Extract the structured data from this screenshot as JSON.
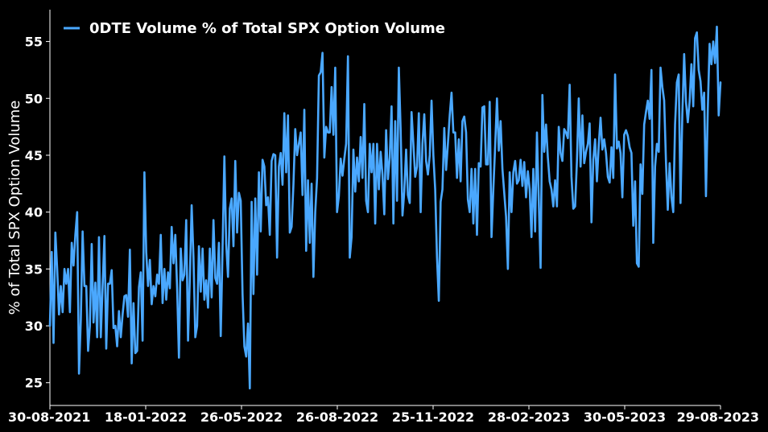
{
  "chart_data": {
    "type": "line",
    "ylabel": "% of Total SPX Option Volume",
    "xlabel": "",
    "ylim": [
      23,
      57.8
    ],
    "yticks": [
      25,
      30,
      35,
      40,
      45,
      50,
      55
    ],
    "xticks": [
      "30-08-2021",
      "18-01-2022",
      "26-05-2022",
      "26-08-2022",
      "25-11-2022",
      "28-02-2023",
      "30-05-2023",
      "29-08-2023"
    ],
    "grid": false,
    "legend_position": "top-left",
    "colors": {
      "line": "#4aa8ff",
      "background": "#000000",
      "text": "#ffffff",
      "axis": "#ffffff"
    },
    "series": [
      {
        "name": "0DTE Volume % of Total SPX Option Volume",
        "values": [
          30.0,
          36.5,
          28.5,
          38.2,
          35.0,
          31.0,
          33.5,
          31.2,
          35.0,
          33.7,
          35.0,
          31.2,
          37.3,
          35.3,
          38.0,
          40.0,
          25.8,
          30.5,
          38.3,
          33.5,
          33.5,
          27.8,
          30.0,
          37.2,
          30.3,
          33.8,
          29.0,
          37.8,
          29.0,
          33.5,
          37.9,
          28.0,
          33.7,
          33.7,
          34.9,
          29.8,
          30.0,
          28.2,
          31.3,
          29.0,
          31.0,
          32.6,
          32.7,
          30.8,
          36.7,
          26.7,
          32.0,
          27.6,
          27.8,
          33.4,
          34.7,
          28.7,
          43.5,
          36.5,
          33.5,
          35.8,
          31.9,
          33.5,
          32.6,
          34.5,
          33.7,
          38.0,
          32.0,
          35.0,
          32.3,
          34.7,
          33.3,
          38.7,
          35.5,
          38.0,
          33.3,
          27.2,
          36.8,
          34.0,
          34.5,
          39.3,
          28.7,
          34.2,
          40.6,
          36.0,
          29.0,
          30.0,
          37.0,
          33.0,
          36.8,
          32.3,
          34.0,
          31.6,
          36.8,
          32.5,
          39.3,
          34.2,
          33.7,
          37.3,
          29.1,
          36.8,
          44.9,
          37.2,
          34.3,
          40.3,
          41.2,
          37.0,
          44.5,
          38.2,
          41.7,
          41.0,
          32.8,
          28.2,
          27.3,
          30.2,
          24.5,
          40.9,
          32.8,
          41.2,
          34.5,
          43.5,
          38.3,
          44.6,
          44.0,
          40.6,
          41.3,
          38.0,
          44.5,
          45.1,
          45.0,
          36.0,
          44.0,
          45.2,
          42.4,
          48.7,
          43.5,
          48.5,
          38.2,
          38.7,
          42.4,
          47.3,
          45.0,
          46.0,
          47.0,
          41.5,
          49.0,
          36.6,
          42.8,
          37.3,
          42.5,
          34.3,
          40.0,
          43.0,
          52.0,
          52.3,
          54.0,
          44.8,
          47.5,
          47.0,
          47.0,
          51.0,
          46.8,
          52.7,
          40.0,
          41.4,
          44.7,
          43.2,
          44.7,
          46.0,
          53.7,
          36.0,
          37.8,
          45.5,
          41.8,
          44.8,
          42.7,
          46.6,
          43.0,
          49.5,
          41.0,
          40.0,
          46.0,
          43.5,
          46.0,
          39.0,
          46.0,
          42.0,
          45.3,
          43.3,
          39.8,
          47.2,
          42.9,
          44.8,
          49.3,
          39.0,
          48.0,
          41.0,
          52.7,
          47.2,
          39.7,
          41.8,
          45.5,
          41.5,
          40.8,
          48.8,
          46.0,
          43.1,
          44.0,
          48.7,
          40.0,
          46.0,
          48.6,
          44.5,
          43.3,
          45.0,
          49.8,
          45.0,
          42.0,
          36.0,
          32.2,
          40.9,
          42.0,
          47.4,
          43.7,
          46.0,
          48.5,
          50.5,
          47.0,
          47.0,
          43.0,
          46.4,
          42.7,
          48.0,
          48.4,
          47.0,
          41.1,
          40.0,
          43.8,
          39.0,
          43.8,
          38.0,
          44.3,
          44.0,
          49.2,
          49.3,
          44.2,
          44.2,
          49.7,
          37.8,
          42.0,
          45.8,
          50.0,
          45.4,
          48.0,
          43.8,
          41.7,
          39.6,
          35.0,
          43.5,
          40.0,
          43.5,
          44.5,
          42.5,
          42.8,
          44.6,
          42.3,
          44.4,
          41.3,
          43.6,
          42.0,
          37.8,
          43.8,
          38.3,
          47.0,
          41.0,
          35.1,
          50.3,
          45.3,
          47.7,
          44.8,
          42.7,
          42.0,
          40.5,
          42.8,
          40.5,
          47.5,
          45.2,
          44.5,
          47.3,
          47.0,
          46.5,
          51.2,
          43.1,
          40.3,
          40.5,
          44.5,
          50.0,
          44.0,
          48.5,
          44.3,
          45.3,
          46.0,
          47.8,
          39.1,
          44.6,
          46.4,
          42.7,
          45.9,
          48.3,
          45.5,
          46.4,
          45.2,
          43.1,
          42.6,
          45.7,
          43.0,
          52.1,
          45.6,
          46.2,
          45.2,
          41.3,
          46.8,
          47.2,
          46.7,
          45.7,
          45.2,
          38.8,
          42.7,
          35.5,
          35.2,
          44.2,
          41.6,
          47.7,
          48.8,
          49.8,
          48.2,
          52.5,
          37.3,
          44.0,
          46.0,
          45.3,
          52.7,
          51.0,
          49.8,
          44.4,
          40.2,
          44.3,
          41.3,
          40.0,
          47.7,
          51.4,
          52.1,
          40.8,
          48.6,
          53.9,
          49.7,
          47.9,
          49.7,
          53.0,
          49.3,
          55.3,
          55.8,
          52.5,
          51.5,
          49.0,
          50.5,
          41.4,
          49.0,
          54.8,
          53.0,
          55.0,
          53.1,
          56.3,
          48.5,
          51.4
        ]
      }
    ]
  }
}
